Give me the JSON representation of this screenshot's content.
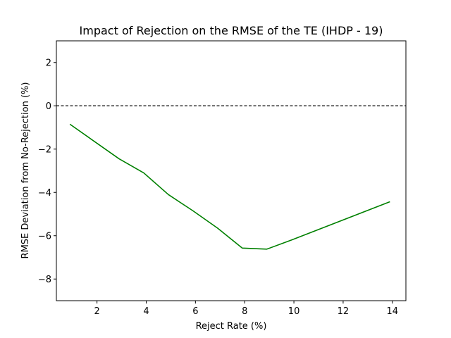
{
  "chart_data": {
    "type": "line",
    "title": "Impact of Rejection on the RMSE of the TE (IHDP - 19)",
    "xlabel": "Reject Rate (%)",
    "ylabel": "RMSE Deviation from No-Rejection (%)",
    "xlim": [
      0.35,
      14.55
    ],
    "ylim": [
      -9,
      3
    ],
    "xticks": [
      2,
      4,
      6,
      8,
      10,
      12,
      14
    ],
    "yticks": [
      2,
      0,
      -2,
      -4,
      -6,
      -8
    ],
    "xtick_labels": [
      "2",
      "4",
      "6",
      "8",
      "10",
      "12",
      "14"
    ],
    "ytick_labels": [
      "2",
      "0",
      "−2",
      "−4",
      "−6",
      "−8"
    ],
    "grid": false,
    "series": [
      {
        "color": "#008000",
        "x": [
          0.9,
          2.9,
          3.9,
          4.9,
          5.9,
          6.9,
          7.9,
          8.9,
          9.9,
          13.9
        ],
        "y": [
          -0.85,
          -2.45,
          -3.1,
          -4.1,
          -4.85,
          -5.65,
          -6.57,
          -6.62,
          -6.2,
          -4.43
        ]
      }
    ],
    "reference_line": {
      "y": 0,
      "style": "dashed",
      "color": "#000000"
    }
  }
}
